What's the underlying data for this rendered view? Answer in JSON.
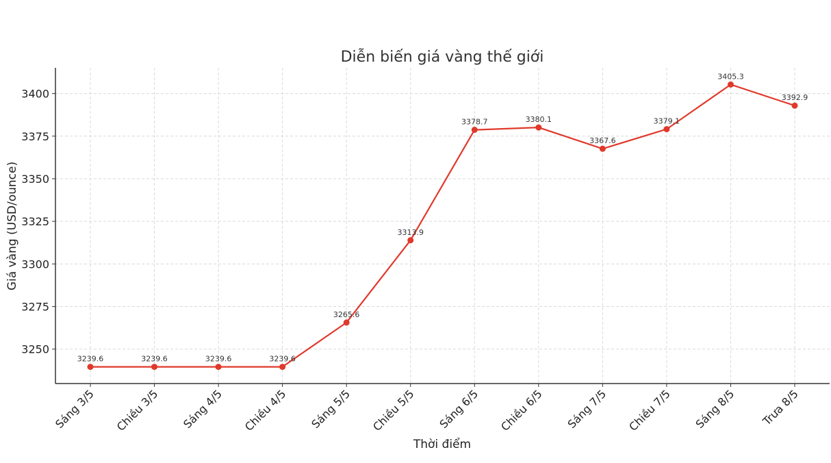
{
  "chart_data": {
    "type": "line",
    "title": "Diễn biến giá vàng thế giới",
    "xlabel": "Thời điểm",
    "ylabel": "Giá vàng (USD/ounce)",
    "categories": [
      "Sáng 3/5",
      "Chiều 3/5",
      "Sáng 4/5",
      "Chiều 4/5",
      "Sáng 5/5",
      "Chiều 5/5",
      "Sáng 6/5",
      "Chiều 6/5",
      "Sáng 7/5",
      "Chiều 7/5",
      "Sáng 8/5",
      "Trưa 8/5"
    ],
    "series": [
      {
        "values": [
          3239.6,
          3239.6,
          3239.6,
          3239.6,
          3265.6,
          3313.9,
          3378.7,
          3380.1,
          3367.6,
          3379.1,
          3405.3,
          3392.9
        ],
        "color": "#e0392b"
      }
    ],
    "data_labels": [
      "3239.6",
      "3239.6",
      "3239.6",
      "3239.6",
      "3265.6",
      "3313.9",
      "3378.7",
      "3380.1",
      "3367.6",
      "3379.1",
      "3405.3",
      "3392.9"
    ],
    "yticks": [
      3250,
      3275,
      3300,
      3325,
      3350,
      3375,
      3400
    ],
    "ytick_labels": [
      "3250",
      "3275",
      "3300",
      "3325",
      "3350",
      "3375",
      "3400"
    ],
    "ylim": [
      3229.8,
      3415.1
    ],
    "grid": true,
    "legend": "none"
  }
}
